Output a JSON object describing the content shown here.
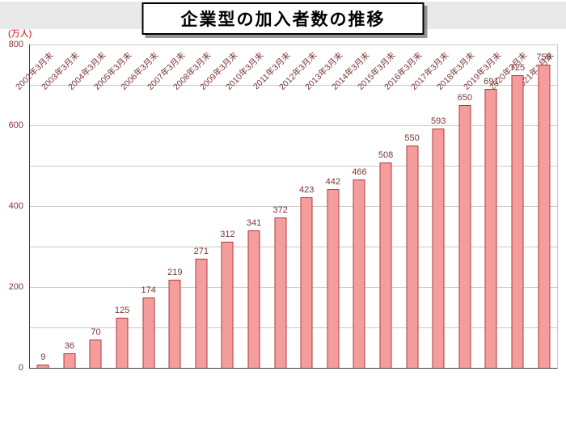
{
  "header": {
    "title": "企業型の加入者数の推移"
  },
  "chart_data": {
    "type": "bar",
    "title": "企業型の加入者数の推移",
    "xlabel": "",
    "ylabel": "(万人)",
    "categories": [
      "2002年3月末",
      "2003年3月末",
      "2004年3月末",
      "2005年3月末",
      "2006年3月末",
      "2007年3月末",
      "2008年3月末",
      "2009年3月末",
      "2010年3月末",
      "2011年3月末",
      "2012年3月末",
      "2013年3月末",
      "2014年3月末",
      "2015年3月末",
      "2016年3月末",
      "2017年3月末",
      "2018年3月末",
      "2019年3月末",
      "2020年3月末",
      "2021年3月末"
    ],
    "values": [
      9,
      36,
      70,
      125,
      174,
      219,
      271,
      312,
      341,
      372,
      423,
      442,
      466,
      508,
      550,
      593,
      650,
      691,
      725,
      750
    ],
    "ylim": [
      0,
      800
    ],
    "yticks": [
      0,
      200,
      400,
      600,
      800
    ],
    "grid_interval": 100,
    "grid": true,
    "legend": "none",
    "bar_color": "#f59d9d",
    "bar_border_color": "#b03a3a",
    "value_label_color": "#7b3434",
    "unit_label_color": "#cc0000"
  }
}
